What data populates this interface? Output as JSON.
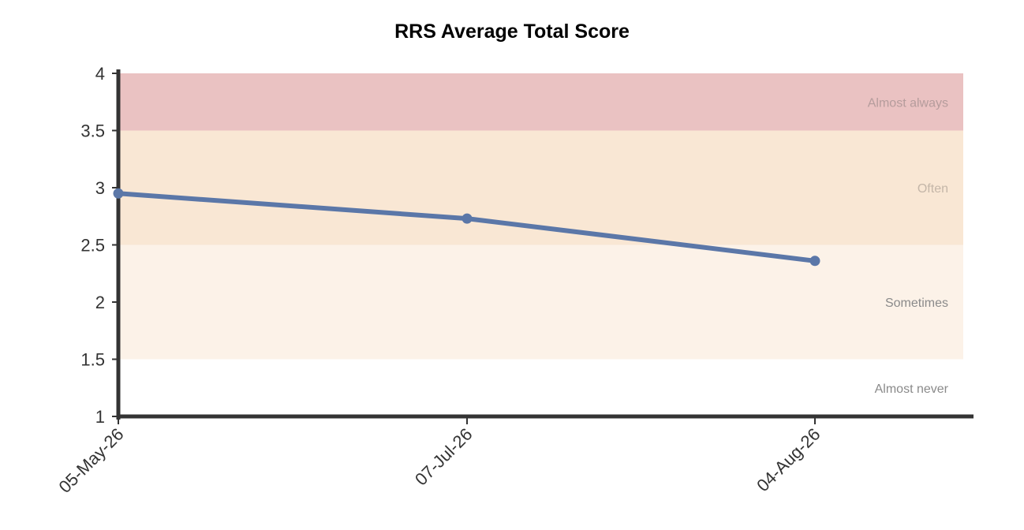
{
  "chart_data": {
    "type": "line",
    "title": "RRS Average Total Score",
    "xlabel": "",
    "ylabel": "",
    "x": [
      "05-May-26",
      "07-Jul-26",
      "04-Aug-26"
    ],
    "series": [
      {
        "values": [
          2.95,
          2.73,
          2.36
        ],
        "color": "#5b77a8"
      }
    ],
    "ylim": [
      1,
      4
    ],
    "yticks": [
      "1",
      "1.5",
      "2",
      "2.5",
      "3",
      "3.5",
      "4"
    ],
    "bands": [
      {
        "label": "Almost never",
        "from": 1,
        "to": 1.5,
        "color": "#ffffff",
        "label_color": "#8a8a8a"
      },
      {
        "label": "Sometimes",
        "from": 1.5,
        "to": 2.5,
        "color": "#fcf2e8",
        "label_color": "#8a8a8a"
      },
      {
        "label": "Often",
        "from": 2.5,
        "to": 3.5,
        "color": "#f9e7d4",
        "label_color": "#c4b6a8"
      },
      {
        "label": "Almost always",
        "from": 3.5,
        "to": 4,
        "color": "#eac2c2",
        "label_color": "#b59c9c"
      }
    ],
    "grid": false,
    "legend": "none"
  }
}
